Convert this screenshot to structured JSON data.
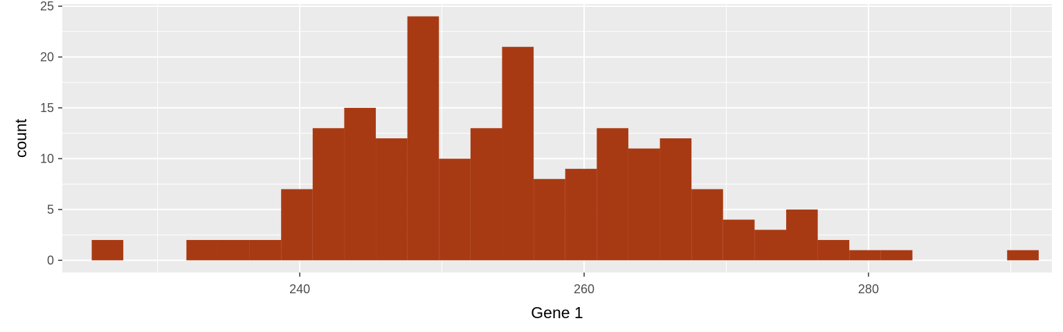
{
  "chart_data": {
    "type": "bar",
    "xlabel": "Gene 1",
    "ylabel": "count",
    "xlim": [
      223.3,
      292.9
    ],
    "ylim": [
      -1.2,
      25.2
    ],
    "x_ticks": [
      240,
      260,
      280
    ],
    "x_minor": [
      230,
      250,
      270,
      290
    ],
    "y_ticks": [
      0,
      5,
      10,
      15,
      20,
      25
    ],
    "grid": true,
    "bin_width": 2.22,
    "bins": [
      {
        "x_start": 225.37,
        "x_end": 227.59,
        "count": 2
      },
      {
        "x_start": 227.59,
        "x_end": 229.81,
        "count": 0
      },
      {
        "x_start": 229.81,
        "x_end": 232.03,
        "count": 0
      },
      {
        "x_start": 232.03,
        "x_end": 234.25,
        "count": 2
      },
      {
        "x_start": 234.25,
        "x_end": 236.47,
        "count": 2
      },
      {
        "x_start": 236.47,
        "x_end": 238.69,
        "count": 2
      },
      {
        "x_start": 238.69,
        "x_end": 240.91,
        "count": 7
      },
      {
        "x_start": 240.91,
        "x_end": 243.13,
        "count": 13
      },
      {
        "x_start": 243.13,
        "x_end": 245.35,
        "count": 15
      },
      {
        "x_start": 245.35,
        "x_end": 247.57,
        "count": 12
      },
      {
        "x_start": 247.57,
        "x_end": 249.79,
        "count": 24
      },
      {
        "x_start": 249.79,
        "x_end": 252.01,
        "count": 10
      },
      {
        "x_start": 252.01,
        "x_end": 254.23,
        "count": 13
      },
      {
        "x_start": 254.23,
        "x_end": 256.45,
        "count": 21
      },
      {
        "x_start": 256.45,
        "x_end": 258.67,
        "count": 8
      },
      {
        "x_start": 258.67,
        "x_end": 260.89,
        "count": 9
      },
      {
        "x_start": 260.89,
        "x_end": 263.11,
        "count": 13
      },
      {
        "x_start": 263.11,
        "x_end": 265.33,
        "count": 11
      },
      {
        "x_start": 265.33,
        "x_end": 267.55,
        "count": 12
      },
      {
        "x_start": 267.55,
        "x_end": 269.77,
        "count": 7
      },
      {
        "x_start": 269.77,
        "x_end": 271.99,
        "count": 4
      },
      {
        "x_start": 271.99,
        "x_end": 274.21,
        "count": 3
      },
      {
        "x_start": 274.21,
        "x_end": 276.43,
        "count": 5
      },
      {
        "x_start": 276.43,
        "x_end": 278.65,
        "count": 2
      },
      {
        "x_start": 278.65,
        "x_end": 280.87,
        "count": 1
      },
      {
        "x_start": 280.87,
        "x_end": 283.09,
        "count": 1
      },
      {
        "x_start": 283.09,
        "x_end": 285.31,
        "count": 0
      },
      {
        "x_start": 285.31,
        "x_end": 287.53,
        "count": 0
      },
      {
        "x_start": 287.53,
        "x_end": 289.75,
        "count": 0
      },
      {
        "x_start": 289.75,
        "x_end": 291.97,
        "count": 1
      }
    ],
    "colors": {
      "bar_fill": "#A83A13",
      "panel_background": "#EBEBEB",
      "grid_line": "#FFFFFF"
    }
  }
}
